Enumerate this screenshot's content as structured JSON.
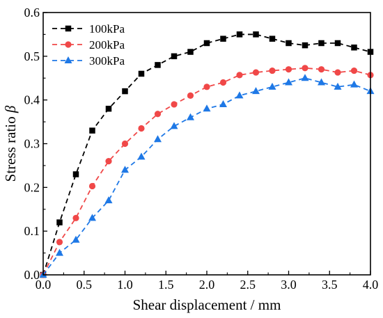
{
  "chart_data": {
    "type": "line",
    "xlabel": "Shear displacement / mm",
    "ylabel_text": "Stress ratio ",
    "ylabel_symbol": "β",
    "xlim": [
      0,
      4.0
    ],
    "ylim": [
      0,
      0.6
    ],
    "x_ticks": [
      0.0,
      0.5,
      1.0,
      1.5,
      2.0,
      2.5,
      3.0,
      3.5,
      4.0
    ],
    "x_tick_labels": [
      "0.0",
      "0.5",
      "1.0",
      "1.5",
      "2.0",
      "2.5",
      "3.0",
      "3.5",
      "4.0"
    ],
    "y_ticks": [
      0.0,
      0.1,
      0.2,
      0.3,
      0.4,
      0.5,
      0.6
    ],
    "y_tick_labels": [
      "0.0",
      "0.1",
      "0.2",
      "0.3",
      "0.4",
      "0.5",
      "0.6"
    ],
    "grid": false,
    "legend_position": "top-left",
    "x": [
      0.0,
      0.2,
      0.4,
      0.6,
      0.8,
      1.0,
      1.2,
      1.4,
      1.6,
      1.8,
      2.0,
      2.2,
      2.4,
      2.6,
      2.8,
      3.0,
      3.2,
      3.4,
      3.6,
      3.8,
      4.0
    ],
    "series": [
      {
        "name": "100kPa",
        "color": "#000000",
        "marker": "square",
        "values": [
          0.0,
          0.12,
          0.23,
          0.33,
          0.38,
          0.42,
          0.46,
          0.48,
          0.5,
          0.51,
          0.53,
          0.54,
          0.55,
          0.55,
          0.54,
          0.53,
          0.525,
          0.53,
          0.53,
          0.52,
          0.51
        ]
      },
      {
        "name": "200kPa",
        "color": "#f04848",
        "marker": "circle",
        "values": [
          0.0,
          0.075,
          0.13,
          0.203,
          0.26,
          0.3,
          0.335,
          0.368,
          0.39,
          0.41,
          0.43,
          0.44,
          0.457,
          0.463,
          0.467,
          0.47,
          0.473,
          0.47,
          0.463,
          0.467,
          0.457
        ]
      },
      {
        "name": "300kPa",
        "color": "#1e78e6",
        "marker": "triangle",
        "values": [
          0.0,
          0.05,
          0.08,
          0.13,
          0.17,
          0.24,
          0.27,
          0.31,
          0.34,
          0.36,
          0.38,
          0.39,
          0.41,
          0.42,
          0.43,
          0.44,
          0.45,
          0.44,
          0.43,
          0.435,
          0.42
        ]
      }
    ]
  }
}
